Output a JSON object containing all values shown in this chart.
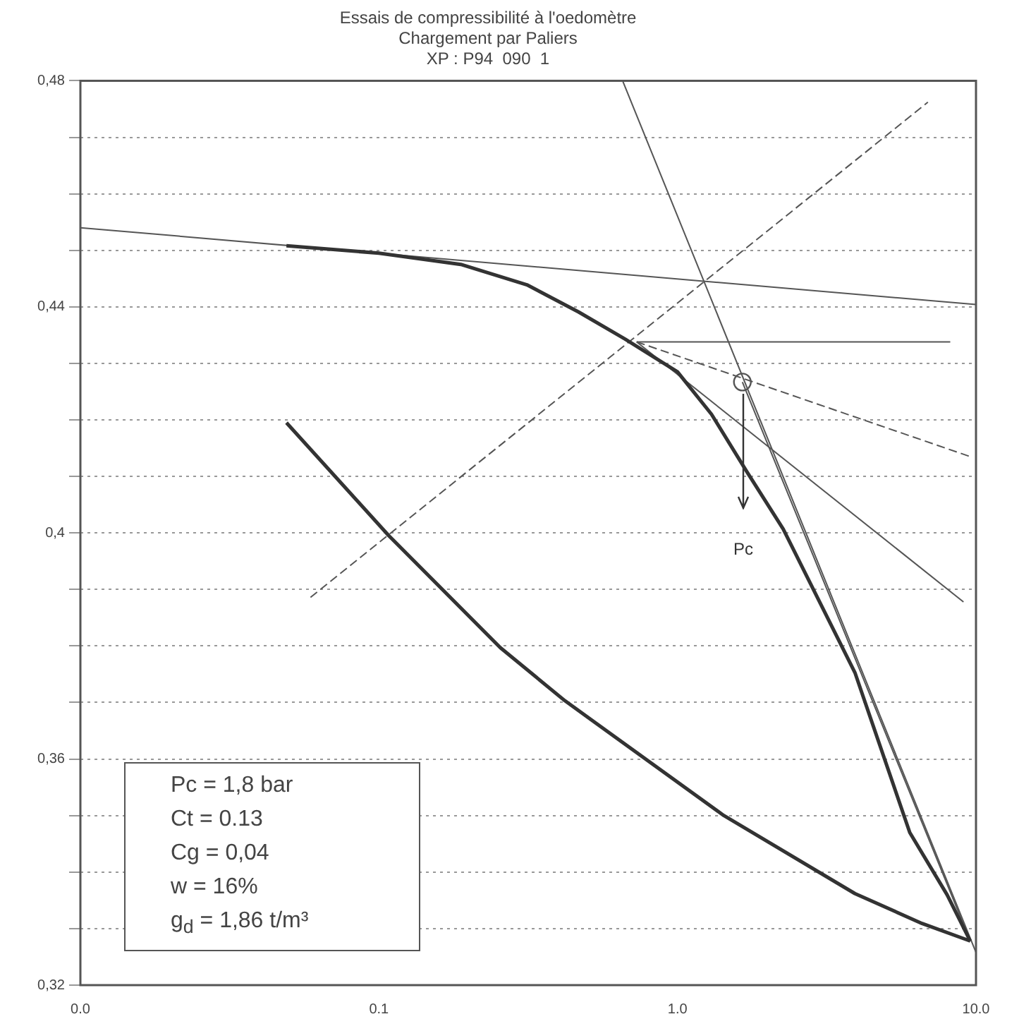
{
  "chart_data": {
    "type": "line",
    "title": "Essais de compressibilité à l'oedomètre",
    "subtitle": "Chargement par Paliers\nXP : P94  090  1",
    "log": "x",
    "grid": "y",
    "legend": false,
    "xlim": [
      0.01,
      10
    ],
    "xticks": [
      {
        "value": 0.01,
        "label": "0.0"
      },
      {
        "value": 0.1,
        "label": "0.1"
      },
      {
        "value": 1,
        "label": "1.0"
      },
      {
        "value": 10,
        "label": "10.0"
      }
    ],
    "ylim": [
      0.32,
      0.48
    ],
    "yticks": [
      {
        "value": 0.32,
        "label": "0,32"
      },
      {
        "value": 0.33,
        "label": null
      },
      {
        "value": 0.34,
        "label": null
      },
      {
        "value": 0.35,
        "label": null
      },
      {
        "value": 0.36,
        "label": "0,36"
      },
      {
        "value": 0.37,
        "label": null
      },
      {
        "value": 0.38,
        "label": null
      },
      {
        "value": 0.39,
        "label": null
      },
      {
        "value": 0.4,
        "label": "0,4"
      },
      {
        "value": 0.41,
        "label": null
      },
      {
        "value": 0.42,
        "label": null
      },
      {
        "value": 0.43,
        "label": null
      },
      {
        "value": 0.44,
        "label": "0,44"
      },
      {
        "value": 0.45,
        "label": null
      },
      {
        "value": 0.46,
        "label": null
      },
      {
        "value": 0.47,
        "label": null
      },
      {
        "value": 0.48,
        "label": "0,48"
      }
    ],
    "series": [
      {
        "color": "#333333",
        "x": [
          0.049,
          0.1,
          0.188,
          0.313,
          0.466,
          0.667,
          1.0,
          1.3,
          1.7,
          2.26,
          3.93,
          6.0,
          8.0,
          9.57
        ],
        "values": [
          0.4508,
          0.4495,
          0.4475,
          0.4439,
          0.4391,
          0.4343,
          0.4285,
          0.421,
          0.411,
          0.4007,
          0.3753,
          0.347,
          0.336,
          0.3278
        ]
      },
      {
        "color": "#333333",
        "x": [
          0.049,
          0.108,
          0.255,
          0.42,
          1.43,
          3.93,
          6.6,
          9.57
        ],
        "values": [
          0.4195,
          0.3995,
          0.3797,
          0.3703,
          0.35,
          0.3362,
          0.3309,
          0.3278
        ]
      },
      {
        "color": "#555555",
        "x": [
          0.01,
          10
        ],
        "values": [
          0.454,
          0.4404
        ]
      },
      {
        "color": "#555555",
        "x": [
          0.655,
          10
        ],
        "values": [
          0.48,
          0.3258
        ]
      },
      {
        "color": "#555555",
        "x": [
          1.65,
          9.57
        ],
        "values": [
          0.4267,
          0.3278
        ]
      },
      {
        "color": "#555555",
        "line_style": "dashed",
        "x": [
          0.059,
          6.9
        ],
        "values": [
          0.3886,
          0.4762
        ]
      },
      {
        "color": "#555555",
        "x": [
          0.73,
          8.2
        ],
        "values": [
          0.4338,
          0.4338
        ]
      },
      {
        "color": "#555555",
        "line_style": "dashed",
        "x": [
          0.73,
          9.57
        ],
        "values": [
          0.4338,
          0.4135
        ]
      },
      {
        "color": "#555555",
        "x": [
          0.73,
          9.08
        ],
        "values": [
          0.4338,
          0.3878
        ]
      },
      {
        "type": "scatter",
        "marker": "circle",
        "color": "#555555",
        "x": [
          1.65
        ],
        "values": [
          0.4267
        ]
      }
    ],
    "annotations": [
      "Pc",
      "Pc =  1,8 bar",
      "Ct =   0.13",
      "Cg =  0,04",
      "w  =   16%",
      "g$_{d}$ =  1,86 t/m³"
    ]
  }
}
